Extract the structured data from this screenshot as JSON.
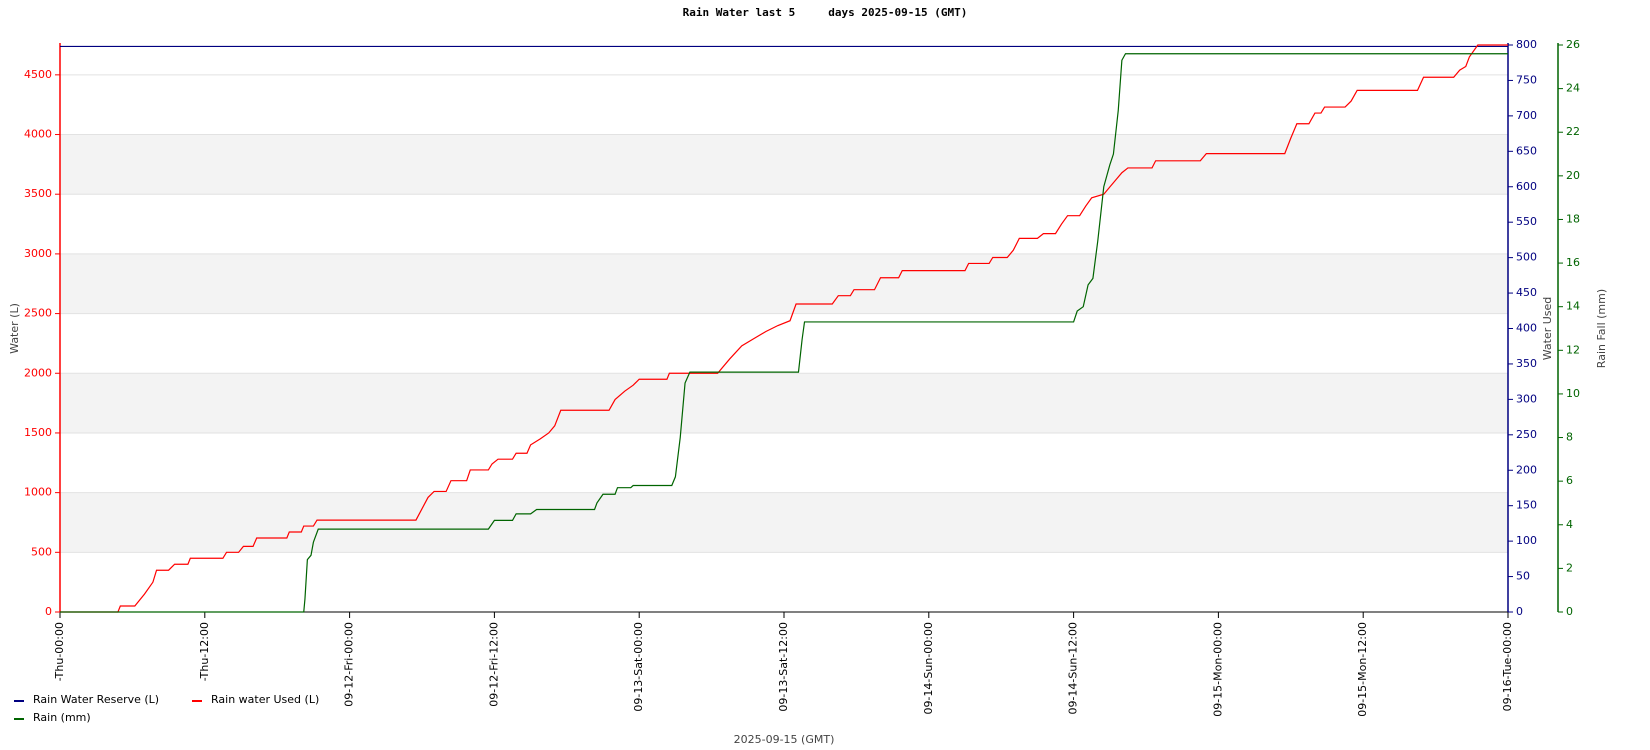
{
  "chart_data": {
    "type": "line",
    "title": "Rain Water last 5     days 2025-09-15 (GMT)",
    "x_label": "2025-09-15 (GMT)",
    "y_label": "Water (L)",
    "y2_label": "Water Used",
    "y3_label": "Rain Fall (mm)",
    "xlim": [
      0,
      120
    ],
    "xticks": [
      {
        "value": 0,
        "label": "-Thu-00:00"
      },
      {
        "value": 12,
        "label": "-Thu-12:00"
      },
      {
        "value": 24,
        "label": "09-12-Fri-00:00"
      },
      {
        "value": 36,
        "label": "09-12-Fri-12:00"
      },
      {
        "value": 48,
        "label": "09-13-Sat-00:00"
      },
      {
        "value": 60,
        "label": "09-13-Sat-12:00"
      },
      {
        "value": 72,
        "label": "09-14-Sun-00:00"
      },
      {
        "value": 84,
        "label": "09-14-Sun-12:00"
      },
      {
        "value": 96,
        "label": "09-15-Mon-00:00"
      },
      {
        "value": 108,
        "label": "09-15-Mon-12:00"
      },
      {
        "value": 120,
        "label": "09-16-Tue-00:00"
      }
    ],
    "ylim": [
      0,
      4750
    ],
    "yticks": [
      0,
      500,
      1000,
      1500,
      2000,
      2500,
      3000,
      3500,
      4000,
      4500
    ],
    "y_color": "#ff0000",
    "y2lim": [
      0,
      800
    ],
    "y2ticks": [
      0,
      50,
      100,
      150,
      200,
      250,
      300,
      350,
      400,
      450,
      500,
      550,
      600,
      650,
      700,
      750,
      800
    ],
    "y2_color": "#000080",
    "y3lim": [
      0,
      26
    ],
    "y3ticks": [
      0,
      2,
      4,
      6,
      8,
      10,
      12,
      14,
      16,
      18,
      20,
      22,
      24,
      26
    ],
    "y3_color": "#006400",
    "grid": true,
    "bands": true,
    "legend": "bottom-left",
    "series": [
      {
        "name": "Rain Water Reserve (L)",
        "color": "#000080",
        "axis": "y2",
        "x": [
          0,
          30,
          60,
          90,
          120
        ],
        "values": [
          798,
          798,
          798,
          798,
          798
        ]
      },
      {
        "name": "Rain water Used (L)",
        "color": "#ff0000",
        "x": [
          0,
          4.8,
          5,
          6.2,
          7,
          7.7,
          8,
          9,
          9.5,
          10.6,
          10.8,
          13.5,
          13.8,
          14.8,
          15.2,
          16,
          16.3,
          18.8,
          19,
          20,
          20.2,
          21,
          21.3,
          29.5,
          30.5,
          31,
          32,
          32.4,
          33.7,
          34,
          35.5,
          35.8,
          36.3,
          37.5,
          37.8,
          38.7,
          39,
          39.8,
          40.5,
          41,
          41.5,
          45.5,
          46,
          46.8,
          47.5,
          48,
          50.3,
          50.5,
          54.5,
          55.5,
          56.5,
          57.5,
          58.5,
          59.5,
          60.5,
          61,
          64,
          64.5,
          65.5,
          65.8,
          67.5,
          67.8,
          68,
          69.5,
          69.8,
          75,
          75.3,
          77,
          77.3,
          78.5,
          79,
          79.5,
          81,
          81.5,
          82.5,
          83,
          83.5,
          84.5,
          85,
          85.5,
          86.5,
          87,
          87.5,
          88,
          88.5,
          90.5,
          90.8,
          94.5,
          95,
          101.5,
          102,
          102.5,
          103.5,
          104,
          104.5,
          104.8,
          106.5,
          107,
          107.5,
          112.5,
          113,
          115.5,
          116,
          116.5,
          116.8,
          117.5,
          120
        ],
        "values": [
          0,
          0,
          50,
          50,
          150,
          250,
          350,
          350,
          400,
          400,
          450,
          450,
          500,
          500,
          550,
          550,
          620,
          620,
          670,
          670,
          720,
          720,
          770,
          770,
          960,
          1010,
          1010,
          1100,
          1100,
          1190,
          1190,
          1240,
          1280,
          1280,
          1330,
          1330,
          1400,
          1450,
          1500,
          1560,
          1690,
          1690,
          1780,
          1850,
          1900,
          1950,
          1950,
          2000,
          2000,
          2120,
          2230,
          2290,
          2350,
          2400,
          2440,
          2580,
          2580,
          2650,
          2650,
          2700,
          2700,
          2760,
          2800,
          2800,
          2860,
          2860,
          2920,
          2920,
          2970,
          2970,
          3030,
          3130,
          3130,
          3170,
          3170,
          3250,
          3320,
          3320,
          3400,
          3470,
          3500,
          3560,
          3620,
          3680,
          3720,
          3720,
          3780,
          3780,
          3840,
          3840,
          3970,
          4090,
          4090,
          4180,
          4180,
          4230,
          4230,
          4280,
          4370,
          4370,
          4480,
          4480,
          4540,
          4570,
          4650,
          4750,
          4750
        ]
      },
      {
        "name": "Rain (mm)",
        "color": "#006400",
        "axis": "y3",
        "x": [
          0,
          20.2,
          20.3,
          20.5,
          20.8,
          21,
          21.4,
          35.5,
          36,
          37.5,
          37.8,
          39,
          39.5,
          44.3,
          44.5,
          45,
          46,
          46.2,
          47.3,
          47.5,
          50.7,
          51,
          51.4,
          51.8,
          52.2,
          61.2,
          61.5,
          61.7,
          84,
          84.3,
          84.8,
          85.2,
          85.6,
          86,
          86.5,
          87,
          87.3,
          87.7,
          88,
          88.3,
          120
        ],
        "values": [
          0,
          0,
          0.6,
          2.4,
          2.6,
          3.2,
          3.8,
          3.8,
          4.2,
          4.2,
          4.5,
          4.5,
          4.7,
          4.7,
          5,
          5.4,
          5.4,
          5.7,
          5.7,
          5.8,
          5.8,
          6.2,
          8,
          10.5,
          11,
          11,
          12.5,
          13.3,
          13.3,
          13.8,
          14,
          15,
          15.3,
          17,
          19.5,
          20.5,
          21,
          23,
          25.3,
          25.6,
          25.6
        ]
      }
    ]
  }
}
